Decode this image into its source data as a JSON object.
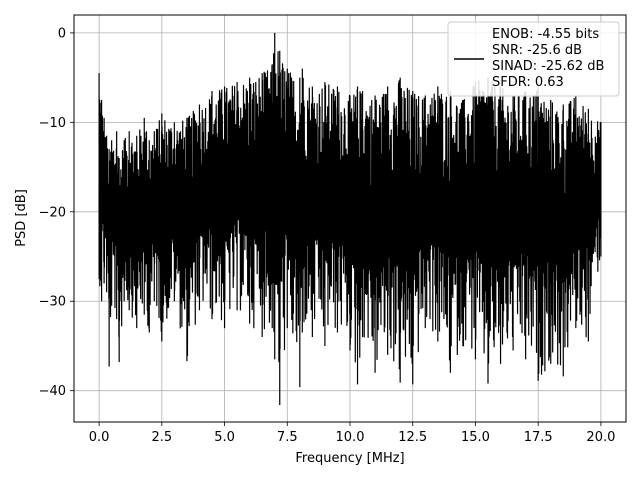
{
  "chart_data": {
    "type": "line",
    "title": "",
    "xlabel": "Frequency [MHz]",
    "ylabel": "PSD [dB]",
    "xlim": [
      -1.0,
      21.0
    ],
    "ylim": [
      -43.5,
      2.0
    ],
    "xticks": [
      0.0,
      2.5,
      5.0,
      7.5,
      10.0,
      12.5,
      15.0,
      17.5,
      20.0
    ],
    "xtick_labels": [
      "0.0",
      "2.5",
      "5.0",
      "7.5",
      "10.0",
      "12.5",
      "15.0",
      "17.5",
      "20.0"
    ],
    "yticks": [
      0,
      -10,
      -20,
      -30,
      -40
    ],
    "ytick_labels": [
      "0",
      "−10",
      "−20",
      "−30",
      "−40"
    ],
    "grid": true,
    "legend_position": "top-right",
    "line_color": "#000000",
    "legend_lines": [
      "ENOB: -4.55 bits",
      "SNR: -25.6 dB",
      "SINAD: -25.62 dB",
      "SFDR: 0.63"
    ],
    "series": [
      {
        "x": [
          0.0,
          0.1,
          0.2,
          0.3,
          0.4,
          0.5,
          0.7,
          0.8,
          1.0,
          1.2,
          1.5,
          1.8,
          2.0,
          2.2,
          2.5,
          3.0,
          3.5,
          4.0,
          4.5,
          5.0,
          5.5,
          6.0,
          6.5,
          6.9,
          7.0,
          7.2,
          7.5,
          8.0,
          8.1,
          8.5,
          9.0,
          9.5,
          10.0,
          10.3,
          10.5,
          11.0,
          11.5,
          12.0,
          12.5,
          13.0,
          13.5,
          14.0,
          14.5,
          15.0,
          15.5,
          16.0,
          16.5,
          17.0,
          17.5,
          18.0,
          18.5,
          19.0,
          19.5,
          20.0
        ],
        "upper": [
          -4.5,
          -7.5,
          -9.5,
          -11.5,
          -13.0,
          -12.0,
          -11.0,
          -14.0,
          -12.0,
          -11.0,
          -11.5,
          -9.5,
          -12.0,
          -11.0,
          -9.0,
          -10.0,
          -9.5,
          -8.0,
          -6.5,
          -6.0,
          -5.5,
          -5.0,
          -4.5,
          -3.5,
          0.0,
          -2.0,
          -4.0,
          -5.0,
          -4.0,
          -6.0,
          -5.5,
          -6.0,
          -7.0,
          -6.0,
          -6.5,
          -7.0,
          -6.0,
          -5.0,
          -6.5,
          -7.0,
          -6.0,
          -6.5,
          -7.5,
          -5.5,
          -5.0,
          -6.0,
          -7.0,
          -6.5,
          -6.0,
          -7.5,
          -8.0,
          -7.0,
          -8.5,
          -10.0
        ],
        "lower": [
          -27.5,
          -30.0,
          -28.0,
          -29.0,
          -37.3,
          -30.5,
          -32.0,
          -36.8,
          -30.0,
          -31.0,
          -33.0,
          -31.5,
          -33.5,
          -30.0,
          -34.5,
          -30.0,
          -36.7,
          -31.0,
          -32.0,
          -33.0,
          -31.0,
          -32.5,
          -34.0,
          -33.0,
          -36.5,
          -41.6,
          -33.0,
          -39.6,
          -33.5,
          -34.0,
          -35.0,
          -33.5,
          -35.5,
          -39.3,
          -34.0,
          -38.0,
          -36.0,
          -39.1,
          -39.3,
          -33.0,
          -34.5,
          -38.0,
          -35.0,
          -36.5,
          -39.2,
          -37.0,
          -35.5,
          -36.5,
          -38.9,
          -37.0,
          -38.4,
          -33.0,
          -34.5,
          -25.0
        ]
      }
    ]
  }
}
